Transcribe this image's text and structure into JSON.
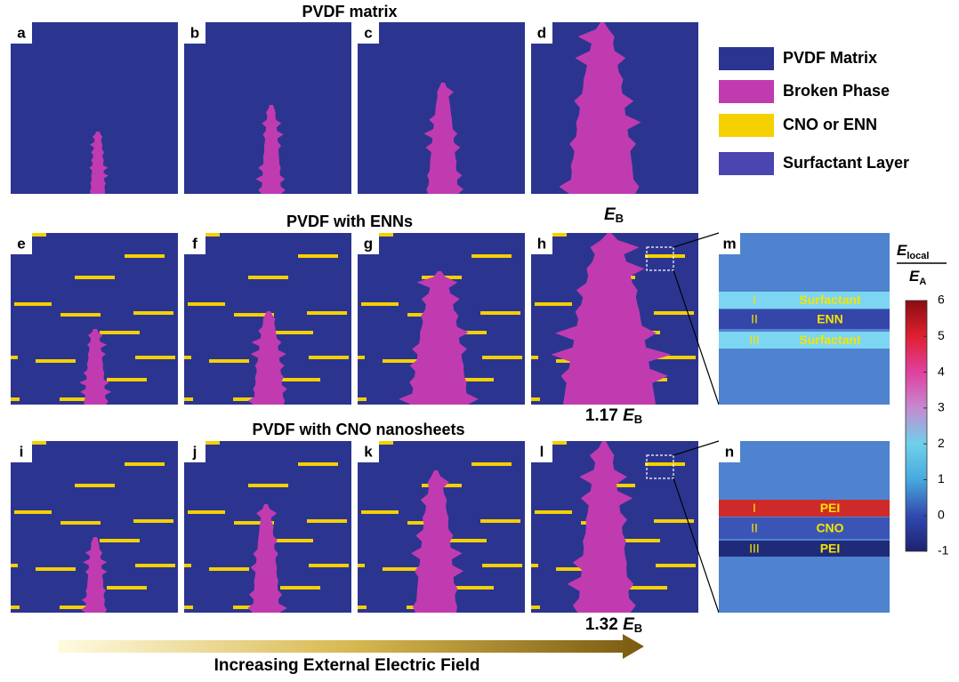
{
  "figure": {
    "row_titles": [
      "PVDF matrix",
      "PVDF with ENNs",
      "PVDF with CNO nanosheets"
    ],
    "panel_labels": [
      "a",
      "b",
      "c",
      "d",
      "e",
      "f",
      "g",
      "h",
      "i",
      "j",
      "k",
      "l",
      "m",
      "n"
    ],
    "field_labels": [
      {
        "symbol": "E",
        "subscript": "B"
      },
      {
        "factor": 1.17,
        "symbol": "E",
        "subscript": "B"
      },
      {
        "factor": 1.32,
        "symbol": "E",
        "subscript": "B"
      }
    ],
    "legend": [
      {
        "label": "PVDF Matrix",
        "color": "#2b3590"
      },
      {
        "label": "Broken Phase",
        "color": "#c13bb0"
      },
      {
        "label": "CNO or ENN",
        "color": "#f5d000"
      },
      {
        "label": "Surfactant Layer",
        "color": "#4a45b0"
      }
    ],
    "zoom_panels": [
      {
        "background": "#4f82cf",
        "layers": [
          {
            "index": "I",
            "name": "Surfactant",
            "color": "#7cd6f2"
          },
          {
            "index": "II",
            "name": "ENN",
            "color": "#3446a8"
          },
          {
            "index": "III",
            "name": "Surfactant",
            "color": "#7cd6f2"
          }
        ]
      },
      {
        "background": "#4f82cf",
        "layers": [
          {
            "index": "I",
            "name": "PEI",
            "color": "#cf2a2a"
          },
          {
            "index": "II",
            "name": "CNO",
            "color": "#3a55b5"
          },
          {
            "index": "III",
            "name": "PEI",
            "color": "#1f2b78"
          }
        ]
      }
    ],
    "colorbar": {
      "title": {
        "symbol": "E",
        "subscript": "local"
      },
      "denominator": {
        "symbol": "E",
        "subscript": "A"
      },
      "lim": [
        -1,
        6
      ],
      "ticks": [
        6,
        5,
        4,
        3,
        2,
        1,
        0,
        -1
      ],
      "colors": [
        "#1c2270",
        "#3249b0",
        "#47a9dc",
        "#6fd0ea",
        "#c58ad0",
        "#e040a0",
        "#e02030",
        "#8a0d10"
      ]
    },
    "arrow_label": "Increasing External Electric Field"
  }
}
